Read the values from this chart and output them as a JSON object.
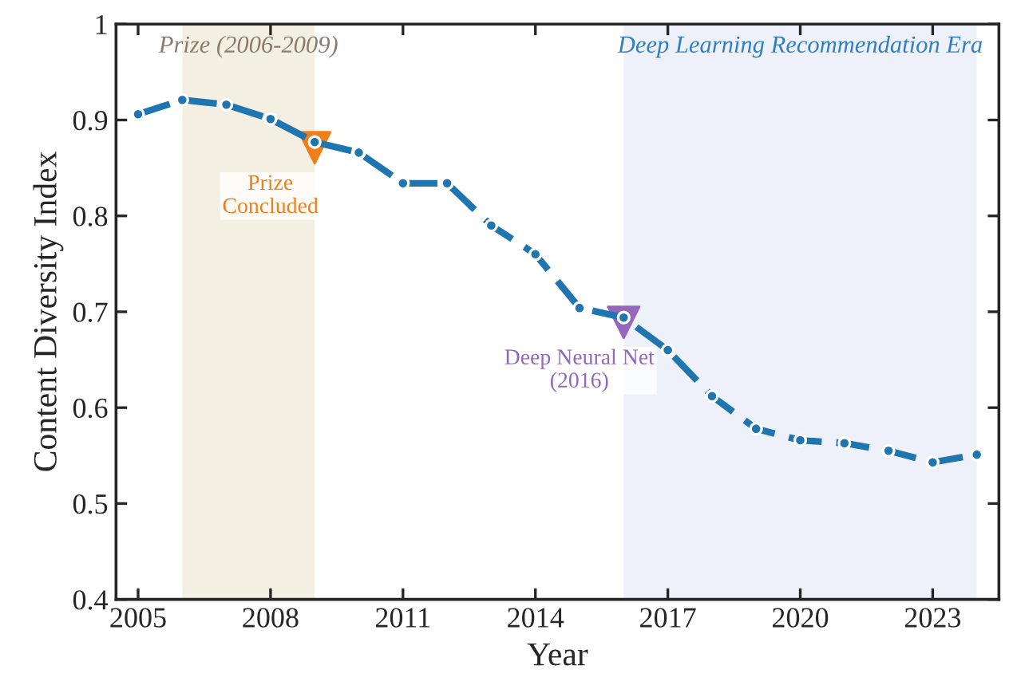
{
  "chart_data": {
    "type": "line",
    "xlabel": "Year",
    "ylabel": "Content Diversity Index",
    "x": [
      2005,
      2006,
      2007,
      2008,
      2009,
      2010,
      2011,
      2012,
      2013,
      2014,
      2015,
      2016,
      2017,
      2018,
      2019,
      2020,
      2021,
      2022,
      2023,
      2024
    ],
    "series": [
      {
        "color": "#1f75b0",
        "values": [
          0.906,
          0.921,
          0.916,
          0.901,
          0.877,
          0.866,
          0.834,
          0.834,
          0.79,
          0.76,
          0.704,
          0.694,
          0.66,
          0.612,
          0.578,
          0.566,
          0.563,
          0.555,
          0.543,
          0.551
        ]
      },
      {
        "type": "scatter",
        "x": [
          2009
        ],
        "values": [
          0.871
        ],
        "color": "#f07f1a",
        "marker": "triangle"
      },
      {
        "type": "scatter",
        "x": [
          2016
        ],
        "values": [
          0.689
        ],
        "color": "#9467bd",
        "marker": "triangle"
      }
    ],
    "marker": "circle",
    "line_style": "dashed",
    "bands": [
      {
        "axis": "x",
        "from": 2006,
        "to": 2009,
        "label": "Prize (2006-2009)",
        "color": "#f4efe3"
      },
      {
        "axis": "x",
        "from": 2016,
        "to": 2024,
        "label": "Deep Learning Recommendation Era",
        "color": "#eef1f9"
      }
    ],
    "annotations": [
      {
        "text": "Prize\nConcluded",
        "x": 2009,
        "y": 0.871
      },
      {
        "text": "Deep Neural Net\n(2016)",
        "x": 2016,
        "y": 0.689
      }
    ],
    "xlim": [
      2004.5,
      2024.5
    ],
    "ylim": [
      0.4,
      1.0
    ],
    "xticks": [
      2005,
      2008,
      2011,
      2014,
      2017,
      2020,
      2023
    ],
    "yticks": [
      0.4,
      0.5,
      0.6,
      0.7,
      0.8,
      0.9,
      1
    ],
    "grid": false,
    "legend": false
  }
}
